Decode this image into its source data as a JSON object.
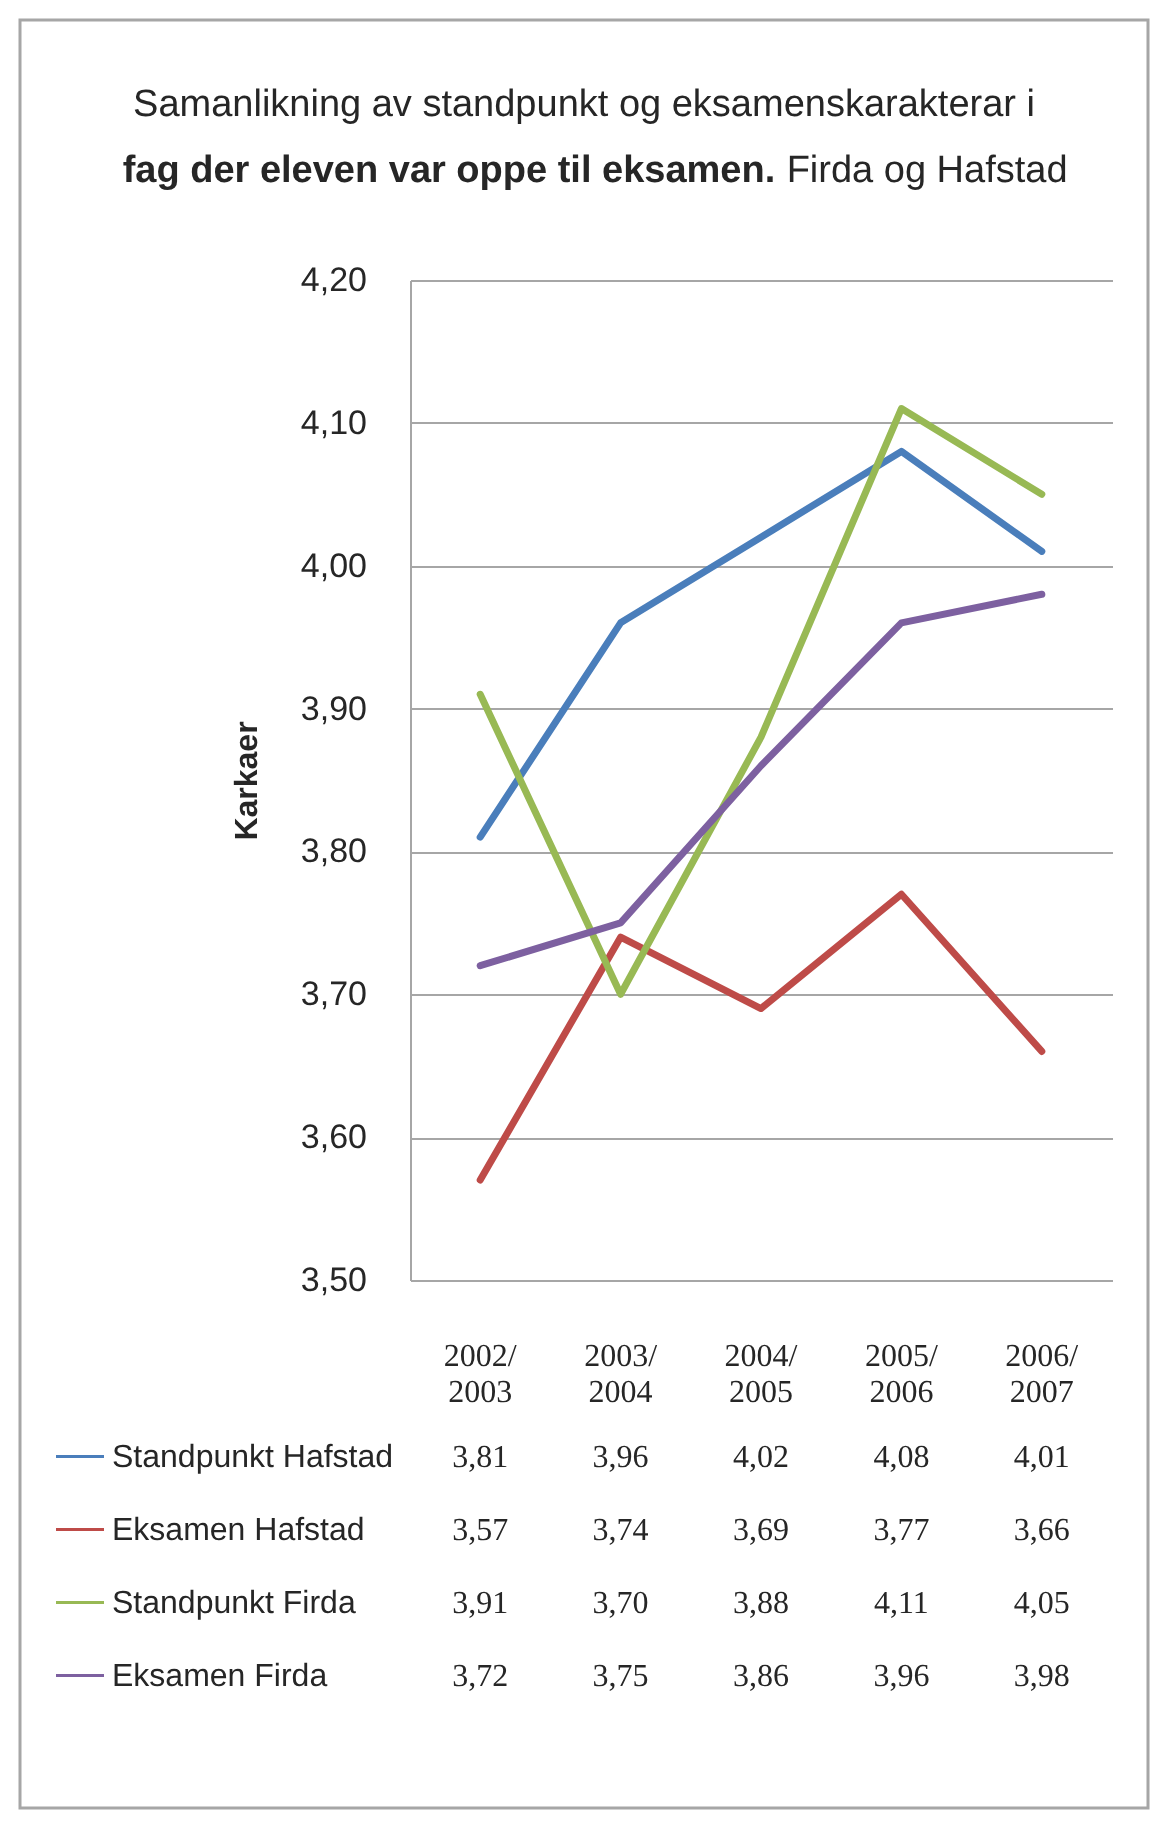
{
  "chart_data": {
    "type": "line",
    "title": "Samanlikning av standpunkt og eksamenskarakterar i fag der eleven var oppe til eksamen. Firda og Hafstad",
    "ylabel": "Karkaer",
    "categories": [
      "2002/2003",
      "2003/2004",
      "2004/2005",
      "2005/2006",
      "2006/2007"
    ],
    "series": [
      {
        "name": "Standpunkt Hafstad",
        "color": "#4a7ebb",
        "values": [
          3.81,
          3.96,
          4.02,
          4.08,
          4.01
        ],
        "value_labels": [
          "3,81",
          "3,96",
          "4,02",
          "4,08",
          "4,01"
        ]
      },
      {
        "name": "Eksamen Hafstad",
        "color": "#be4b48",
        "values": [
          3.57,
          3.74,
          3.69,
          3.77,
          3.66
        ],
        "value_labels": [
          "3,57",
          "3,74",
          "3,69",
          "3,77",
          "3,66"
        ]
      },
      {
        "name": "Standpunkt Firda",
        "color": "#98b954",
        "values": [
          3.91,
          3.7,
          3.88,
          4.11,
          4.05
        ],
        "value_labels": [
          "3,91",
          "3,70",
          "3,88",
          "4,11",
          "4,05"
        ]
      },
      {
        "name": "Eksamen Firda",
        "color": "#7d60a0",
        "values": [
          3.72,
          3.75,
          3.86,
          3.96,
          3.98
        ],
        "value_labels": [
          "3,72",
          "3,75",
          "3,86",
          "3,96",
          "3,98"
        ]
      }
    ],
    "ylim": [
      3.5,
      4.2
    ],
    "yticks": [
      {
        "value": 3.5,
        "label": "3,50"
      },
      {
        "value": 3.6,
        "label": "3,60"
      },
      {
        "value": 3.7,
        "label": "3,70"
      },
      {
        "value": 3.8,
        "label": "3,80"
      },
      {
        "value": 3.9,
        "label": "3,90"
      },
      {
        "value": 4.0,
        "label": "4,00"
      },
      {
        "value": 4.1,
        "label": "4,10"
      },
      {
        "value": 4.2,
        "label": "4,20"
      }
    ],
    "grid": "y",
    "legend": "bottom left",
    "marker": "none",
    "line_style": "solid"
  }
}
